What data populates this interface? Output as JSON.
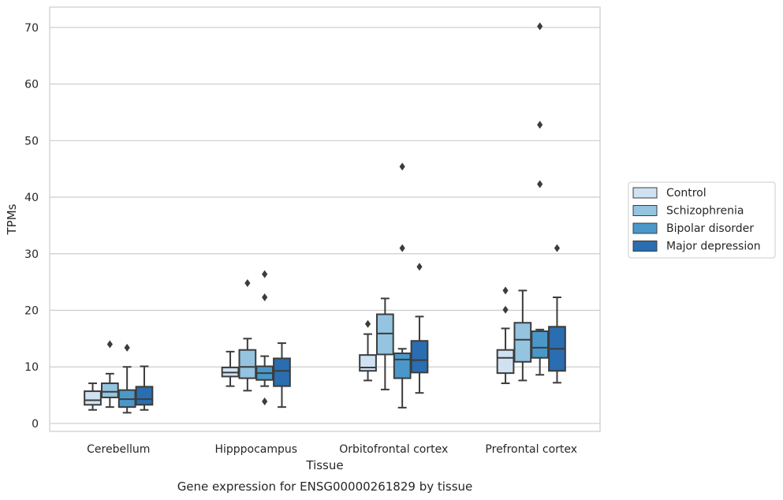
{
  "chart_data": {
    "type": "box",
    "xlabel": "Tissue",
    "ylabel": "TPMs",
    "caption": "Gene expression for ENSG00000261829 by tissue",
    "ylim": [
      -1.4,
      73.6
    ],
    "yticks": [
      0,
      10,
      20,
      30,
      40,
      50,
      60,
      70
    ],
    "grid": "horizontal",
    "legend_position": "right",
    "categories": [
      "Cerebellum",
      "Hipppocampus",
      "Orbitofrontal cortex",
      "Prefrontal cortex"
    ],
    "series": [
      {
        "name": "Control",
        "color": "#d0e1f2",
        "boxes": [
          {
            "whislo": 2.4,
            "q1": 3.3,
            "med": 4.1,
            "q3": 5.7,
            "whishi": 7.1,
            "fliers": []
          },
          {
            "whislo": 6.6,
            "q1": 8.3,
            "med": 9.0,
            "q3": 9.9,
            "whishi": 12.7,
            "fliers": []
          },
          {
            "whislo": 7.6,
            "q1": 9.3,
            "med": 9.9,
            "q3": 12.1,
            "whishi": 15.8,
            "fliers": [
              17.6
            ]
          },
          {
            "whislo": 7.1,
            "q1": 8.9,
            "med": 11.6,
            "q3": 13.0,
            "whishi": 16.8,
            "fliers": [
              20.1,
              23.5
            ]
          }
        ]
      },
      {
        "name": "Schizophrenia",
        "color": "#94c4df",
        "boxes": [
          {
            "whislo": 2.9,
            "q1": 4.6,
            "med": 5.6,
            "q3": 7.1,
            "whishi": 8.8,
            "fliers": [
              14.0
            ]
          },
          {
            "whislo": 5.8,
            "q1": 8.0,
            "med": 10.0,
            "q3": 13.0,
            "whishi": 15.0,
            "fliers": [
              24.8
            ]
          },
          {
            "whislo": 6.0,
            "q1": 12.2,
            "med": 15.9,
            "q3": 19.3,
            "whishi": 22.1,
            "fliers": []
          },
          {
            "whislo": 7.6,
            "q1": 10.9,
            "med": 14.8,
            "q3": 17.8,
            "whishi": 23.5,
            "fliers": []
          }
        ]
      },
      {
        "name": "Bipolar disorder",
        "color": "#4a98c9",
        "boxes": [
          {
            "whislo": 1.9,
            "q1": 2.9,
            "med": 4.3,
            "q3": 5.9,
            "whishi": 10.0,
            "fliers": [
              13.4
            ]
          },
          {
            "whislo": 6.6,
            "q1": 7.7,
            "med": 8.9,
            "q3": 10.1,
            "whishi": 11.9,
            "fliers": [
              22.3,
              26.4,
              3.9
            ]
          },
          {
            "whislo": 2.8,
            "q1": 8.0,
            "med": 11.3,
            "q3": 12.4,
            "whishi": 13.2,
            "fliers": [
              45.4,
              31.0
            ]
          },
          {
            "whislo": 8.6,
            "q1": 11.6,
            "med": 13.4,
            "q3": 16.3,
            "whishi": 16.6,
            "fliers": [
              70.2,
              52.8,
              42.3
            ]
          }
        ]
      },
      {
        "name": "Major depression",
        "color": "#2a6db0",
        "boxes": [
          {
            "whislo": 2.4,
            "q1": 3.3,
            "med": 4.3,
            "q3": 6.5,
            "whishi": 10.1,
            "fliers": []
          },
          {
            "whislo": 2.9,
            "q1": 6.6,
            "med": 9.3,
            "q3": 11.5,
            "whishi": 14.2,
            "fliers": []
          },
          {
            "whislo": 5.4,
            "q1": 9.0,
            "med": 11.2,
            "q3": 14.6,
            "whishi": 18.9,
            "fliers": [
              27.7
            ]
          },
          {
            "whislo": 7.2,
            "q1": 9.3,
            "med": 13.2,
            "q3": 17.1,
            "whishi": 22.3,
            "fliers": [
              31.0
            ]
          }
        ]
      }
    ]
  }
}
